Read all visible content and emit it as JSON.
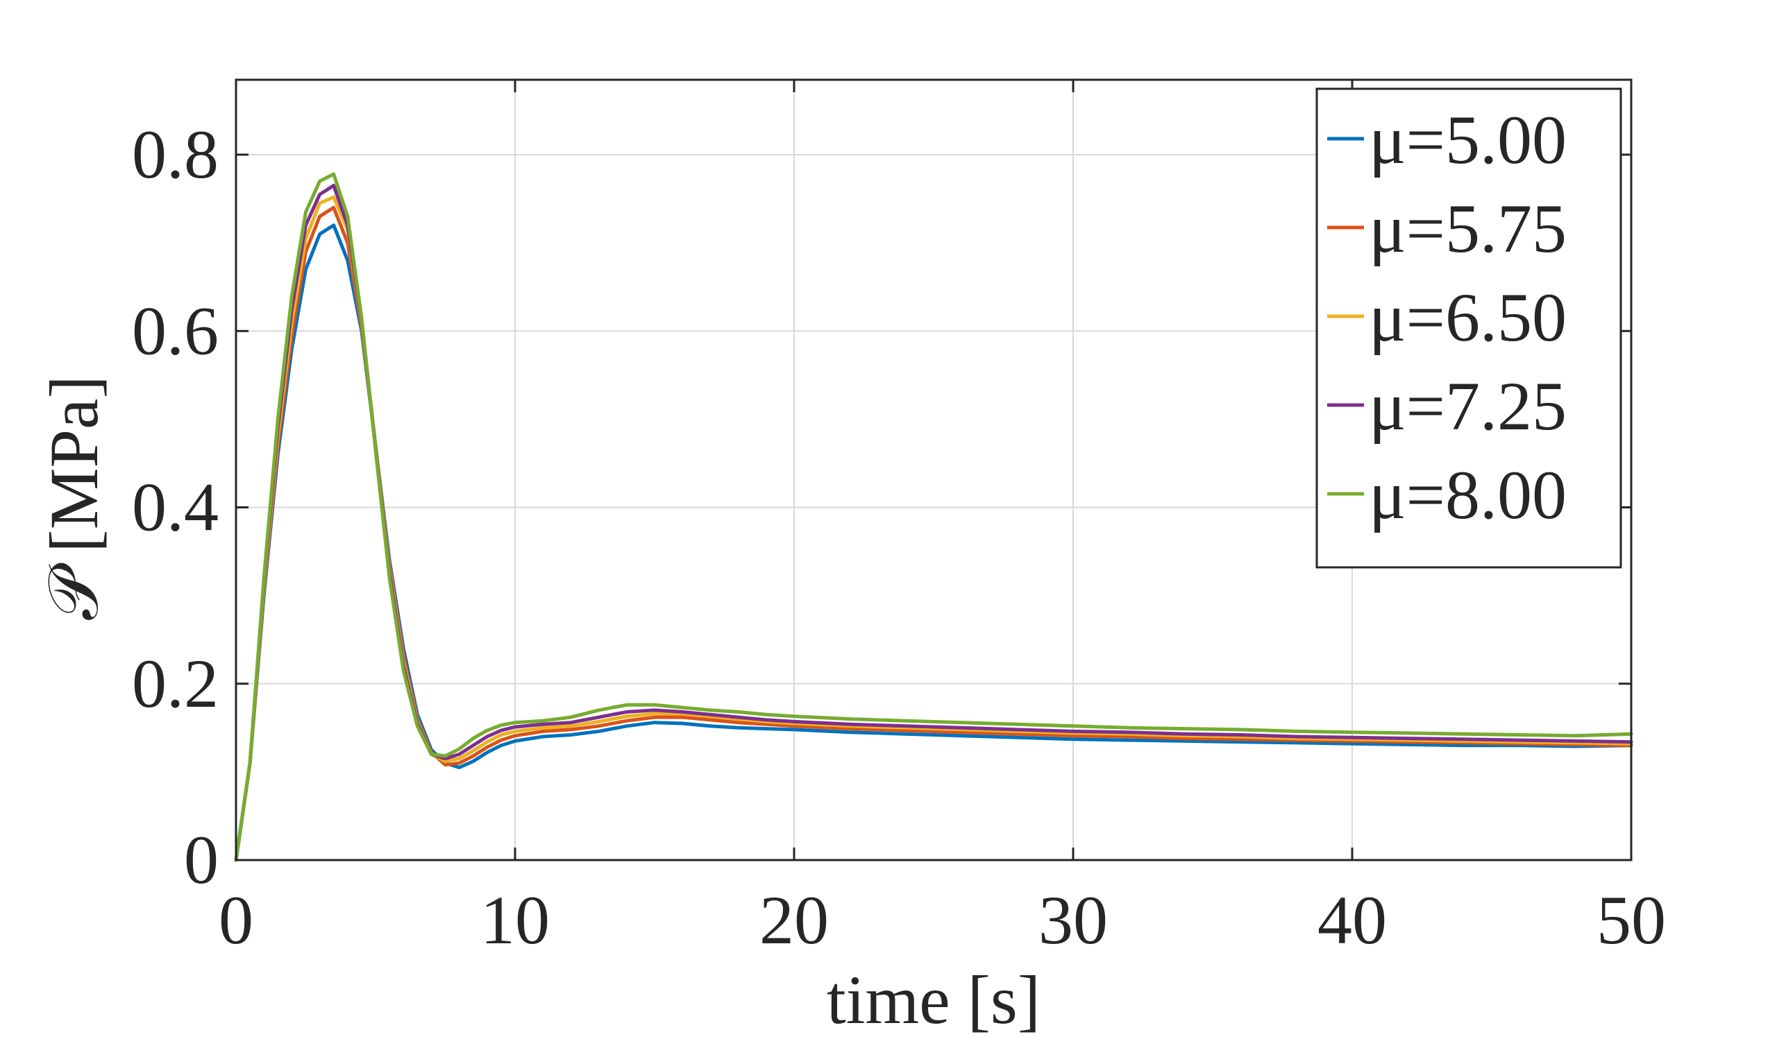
{
  "chart_data": {
    "type": "line",
    "xlabel": "time [s]",
    "ylabel": "𝒫 [MPa]",
    "xlim": [
      0,
      50
    ],
    "ylim": [
      0,
      0.885
    ],
    "xticks": [
      0,
      10,
      20,
      30,
      40,
      50
    ],
    "xtick_labels": [
      "0",
      "10",
      "20",
      "30",
      "40",
      "50"
    ],
    "yticks": [
      0,
      0.2,
      0.4,
      0.6,
      0.8
    ],
    "ytick_labels": [
      "0",
      "0.2",
      "0.4",
      "0.6",
      "0.8"
    ],
    "grid": true,
    "legend_position": "top-right",
    "x": [
      0,
      0.5,
      1,
      1.5,
      2,
      2.5,
      3,
      3.5,
      4,
      4.5,
      5,
      5.5,
      6,
      6.5,
      7,
      7.5,
      8,
      8.5,
      9,
      9.5,
      10,
      11,
      12,
      13,
      14,
      15,
      16,
      17,
      18,
      19,
      20,
      22,
      24,
      26,
      28,
      30,
      32,
      34,
      36,
      38,
      40,
      42,
      44,
      46,
      48,
      50
    ],
    "series": [
      {
        "name": "μ=5.00",
        "color": "#0072BD",
        "values": [
          0,
          0.11,
          0.3,
          0.46,
          0.58,
          0.67,
          0.71,
          0.72,
          0.68,
          0.6,
          0.47,
          0.34,
          0.24,
          0.165,
          0.125,
          0.11,
          0.105,
          0.112,
          0.122,
          0.13,
          0.135,
          0.14,
          0.142,
          0.146,
          0.152,
          0.156,
          0.155,
          0.152,
          0.15,
          0.149,
          0.148,
          0.145,
          0.143,
          0.141,
          0.139,
          0.137,
          0.136,
          0.135,
          0.134,
          0.133,
          0.132,
          0.131,
          0.13,
          0.13,
          0.129,
          0.13
        ]
      },
      {
        "name": "μ=5.75",
        "color": "#D95319",
        "values": [
          0,
          0.11,
          0.305,
          0.47,
          0.595,
          0.69,
          0.73,
          0.74,
          0.7,
          0.605,
          0.47,
          0.335,
          0.232,
          0.16,
          0.122,
          0.108,
          0.11,
          0.118,
          0.128,
          0.136,
          0.141,
          0.146,
          0.148,
          0.152,
          0.158,
          0.162,
          0.162,
          0.159,
          0.156,
          0.154,
          0.152,
          0.149,
          0.147,
          0.145,
          0.143,
          0.141,
          0.14,
          0.138,
          0.137,
          0.136,
          0.135,
          0.134,
          0.133,
          0.132,
          0.131,
          0.13
        ]
      },
      {
        "name": "μ=6.50",
        "color": "#EDB120",
        "values": [
          0,
          0.11,
          0.31,
          0.48,
          0.61,
          0.705,
          0.745,
          0.752,
          0.715,
          0.61,
          0.47,
          0.33,
          0.225,
          0.157,
          0.12,
          0.112,
          0.115,
          0.124,
          0.134,
          0.142,
          0.146,
          0.15,
          0.152,
          0.157,
          0.163,
          0.166,
          0.166,
          0.163,
          0.16,
          0.157,
          0.155,
          0.152,
          0.15,
          0.148,
          0.146,
          0.144,
          0.143,
          0.141,
          0.14,
          0.138,
          0.137,
          0.136,
          0.135,
          0.134,
          0.133,
          0.132
        ]
      },
      {
        "name": "μ=7.25",
        "color": "#7E2F8E",
        "values": [
          0,
          0.11,
          0.315,
          0.49,
          0.625,
          0.72,
          0.755,
          0.765,
          0.72,
          0.612,
          0.468,
          0.326,
          0.22,
          0.155,
          0.12,
          0.115,
          0.12,
          0.13,
          0.14,
          0.147,
          0.151,
          0.154,
          0.156,
          0.162,
          0.168,
          0.17,
          0.168,
          0.165,
          0.162,
          0.159,
          0.157,
          0.154,
          0.152,
          0.15,
          0.148,
          0.146,
          0.145,
          0.143,
          0.142,
          0.14,
          0.139,
          0.138,
          0.137,
          0.136,
          0.135,
          0.134
        ]
      },
      {
        "name": "μ=8.00",
        "color": "#77AC30",
        "values": [
          0,
          0.11,
          0.32,
          0.5,
          0.64,
          0.735,
          0.77,
          0.778,
          0.73,
          0.615,
          0.465,
          0.32,
          0.215,
          0.152,
          0.12,
          0.118,
          0.126,
          0.138,
          0.147,
          0.153,
          0.156,
          0.158,
          0.162,
          0.17,
          0.176,
          0.176,
          0.173,
          0.17,
          0.168,
          0.165,
          0.163,
          0.16,
          0.158,
          0.156,
          0.154,
          0.152,
          0.15,
          0.149,
          0.148,
          0.146,
          0.145,
          0.144,
          0.143,
          0.142,
          0.141,
          0.143
        ]
      }
    ]
  }
}
